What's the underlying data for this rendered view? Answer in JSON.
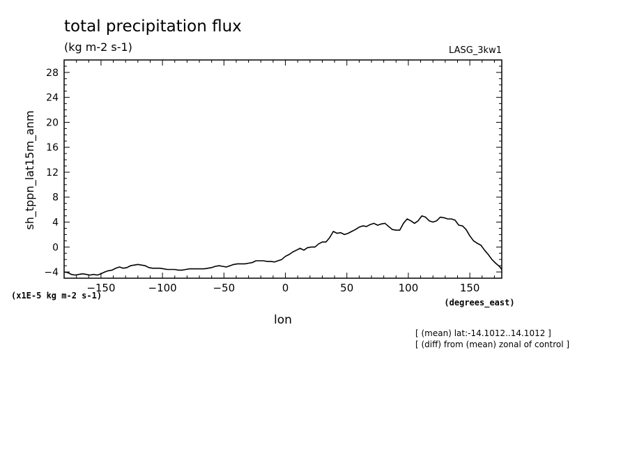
{
  "header": {
    "title": "total precipitation flux",
    "units": "(kg m-2 s-1)",
    "dataset": "LASG_3kw1"
  },
  "footnotes": [
    "[ (mean) lat:-14.1012..14.1012 ]",
    "[ (diff) from (mean) zonal of control ]"
  ],
  "chart_data": {
    "type": "line",
    "xlabel": "lon",
    "xunits": "(degrees_east)",
    "ylabel": "sh_tppn_lat15m_anm",
    "yunits": "(x1E-5 kg m-2 s-1)",
    "xlim": [
      -180,
      176
    ],
    "ylim": [
      -5,
      30
    ],
    "xticks": [
      -150,
      -100,
      -50,
      0,
      50,
      100,
      150
    ],
    "yticks": [
      -4,
      0,
      4,
      8,
      12,
      16,
      20,
      24,
      28
    ],
    "line_color": "#000000",
    "series": [
      {
        "x": [
          -180,
          -177,
          -174,
          -171,
          -168,
          -165,
          -162,
          -159,
          -156,
          -153,
          -150,
          -147,
          -144,
          -141,
          -138,
          -135,
          -132,
          -129,
          -126,
          -123,
          -120,
          -117,
          -114,
          -111,
          -108,
          -105,
          -102,
          -99,
          -96,
          -93,
          -90,
          -87,
          -84,
          -81,
          -78,
          -75,
          -72,
          -69,
          -66,
          -63,
          -60,
          -57,
          -54,
          -51,
          -48,
          -45,
          -42,
          -39,
          -36,
          -33,
          -30,
          -27,
          -24,
          -21,
          -18,
          -15,
          -12,
          -9,
          -6,
          -3,
          0,
          3,
          6,
          9,
          12,
          15,
          18,
          21,
          24,
          27,
          30,
          33,
          36,
          39,
          42,
          45,
          48,
          51,
          54,
          57,
          60,
          63,
          66,
          69,
          72,
          75,
          78,
          81,
          84,
          87,
          90,
          93,
          96,
          99,
          102,
          105,
          108,
          111,
          114,
          117,
          120,
          123,
          126,
          129,
          132,
          135,
          138,
          141,
          144,
          147,
          150,
          153,
          156,
          159,
          162,
          165,
          168,
          171,
          174,
          176
        ],
        "y": [
          -4.0,
          -4.1,
          -4.4,
          -4.5,
          -4.4,
          -4.3,
          -4.4,
          -4.5,
          -4.4,
          -4.5,
          -4.3,
          -4.0,
          -3.8,
          -3.7,
          -3.4,
          -3.2,
          -3.4,
          -3.3,
          -3.0,
          -2.9,
          -2.8,
          -2.9,
          -3.0,
          -3.3,
          -3.4,
          -3.4,
          -3.4,
          -3.5,
          -3.6,
          -3.6,
          -3.6,
          -3.7,
          -3.7,
          -3.6,
          -3.5,
          -3.5,
          -3.5,
          -3.5,
          -3.5,
          -3.4,
          -3.3,
          -3.1,
          -3.0,
          -3.1,
          -3.2,
          -3.0,
          -2.8,
          -2.7,
          -2.7,
          -2.7,
          -2.6,
          -2.5,
          -2.2,
          -2.2,
          -2.2,
          -2.3,
          -2.3,
          -2.4,
          -2.2,
          -2.0,
          -1.5,
          -1.2,
          -0.8,
          -0.5,
          -0.2,
          -0.5,
          -0.1,
          0.0,
          0.0,
          0.5,
          0.8,
          0.8,
          1.5,
          2.5,
          2.2,
          2.3,
          2.0,
          2.2,
          2.5,
          2.8,
          3.2,
          3.4,
          3.3,
          3.6,
          3.8,
          3.5,
          3.7,
          3.8,
          3.3,
          2.8,
          2.7,
          2.7,
          3.8,
          4.5,
          4.2,
          3.8,
          4.2,
          5.0,
          4.8,
          4.2,
          4.0,
          4.2,
          4.8,
          4.7,
          4.5,
          4.5,
          4.3,
          3.5,
          3.4,
          2.8,
          1.8,
          1.0,
          0.6,
          0.3,
          -0.5,
          -1.2,
          -2.0,
          -2.6,
          -3.1,
          -3.6
        ]
      }
    ]
  }
}
